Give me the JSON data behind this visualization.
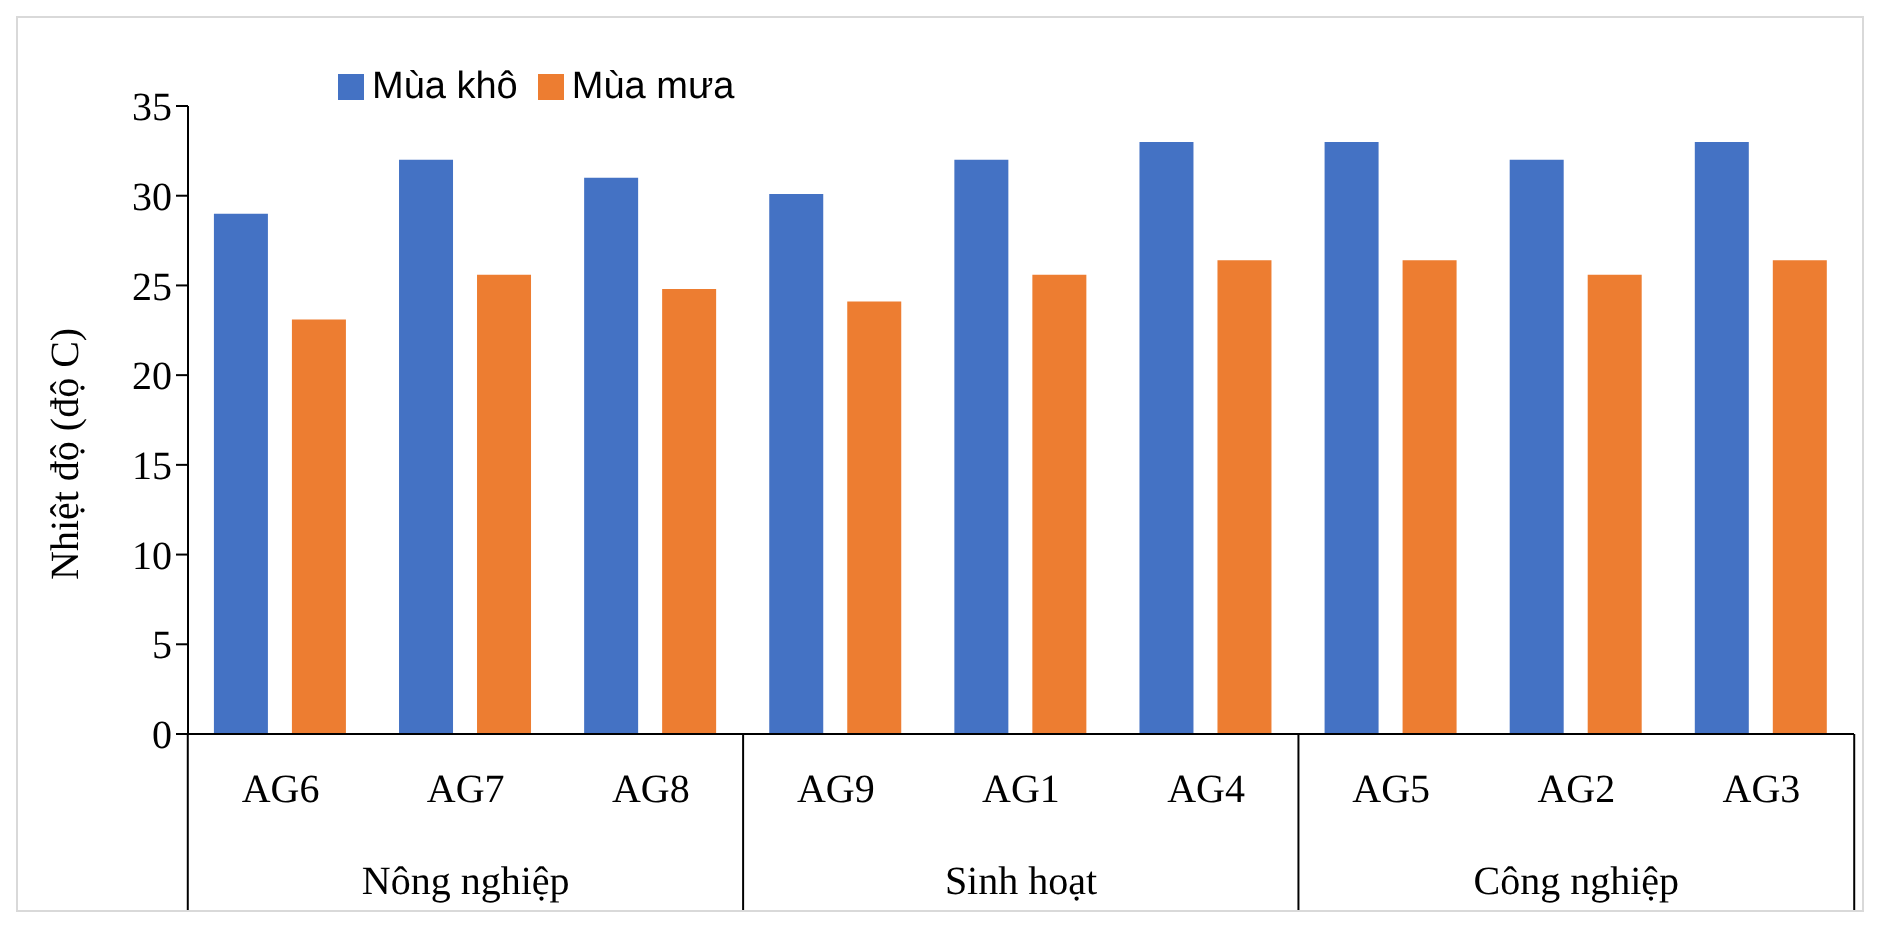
{
  "chart_data": {
    "type": "bar",
    "ylabel": "Nhiệt độ (độ C)",
    "categories": [
      "AG6",
      "AG7",
      "AG8",
      "AG9",
      "AG1",
      "AG4",
      "AG5",
      "AG2",
      "AG3"
    ],
    "series": [
      {
        "name": "Mùa khô",
        "color": "#4472c4",
        "values": [
          29,
          32,
          31,
          30.1,
          32,
          33,
          33,
          32,
          33
        ]
      },
      {
        "name": "Mùa mưa",
        "color": "#ed7d31",
        "values": [
          23.1,
          25.6,
          24.8,
          24.1,
          25.6,
          26.4,
          26.4,
          25.6,
          26.4
        ]
      }
    ],
    "ylim": [
      0,
      35
    ],
    "yticks": [
      0,
      5,
      10,
      15,
      20,
      25,
      30,
      35
    ],
    "grid": false,
    "legend": "top left",
    "annotations": [
      "Nông nghiệp",
      "Sinh hoạt",
      "Công nghiệp"
    ]
  }
}
